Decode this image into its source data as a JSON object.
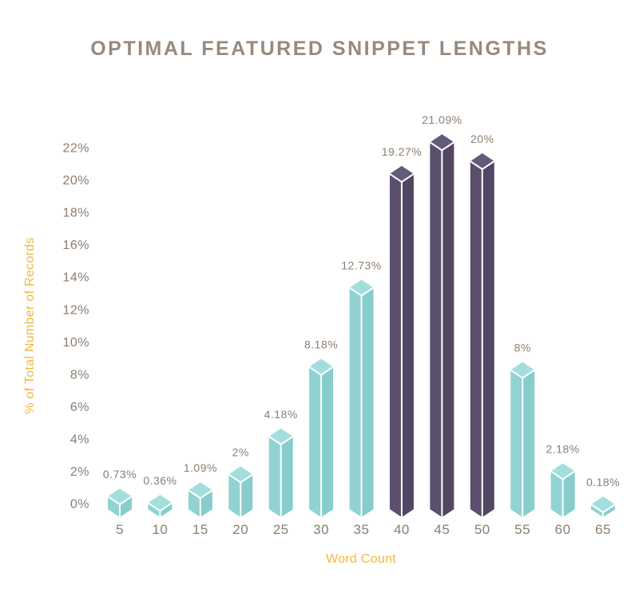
{
  "title": "OPTIMAL FEATURED SNIPPET LENGTHS",
  "colors": {
    "background": "#ffffff",
    "title_text": "#97897d",
    "label_text": "#8b7d70",
    "axis_title_text": "#f5b73e",
    "bar_teal_top": "#a3dedd",
    "bar_teal_left": "#90d3d2",
    "bar_teal_right": "#86cdcc",
    "bar_purple_top": "#645a7a",
    "bar_purple_left": "#5a506e",
    "bar_purple_right": "#514763",
    "edge_white": "#ffffff"
  },
  "chart_data": {
    "type": "bar",
    "bar_style": "3d-isometric",
    "title": "OPTIMAL FEATURED SNIPPET LENGTHS",
    "xlabel": "Word Count",
    "ylabel": "% of Total Number of Records",
    "categories": [
      "5",
      "10",
      "15",
      "20",
      "25",
      "30",
      "35",
      "40",
      "45",
      "50",
      "55",
      "60",
      "65"
    ],
    "values": [
      0.73,
      0.36,
      1.09,
      2,
      4.18,
      8.18,
      12.73,
      19.27,
      21.09,
      20,
      8,
      2.18,
      0.18
    ],
    "value_labels": [
      "0.73%",
      "0.36%",
      "1.09%",
      "2%",
      "4.18%",
      "8.18%",
      "12.73%",
      "19.27%",
      "21.09%",
      "20%",
      "8%",
      "2.18%",
      "0.18%"
    ],
    "highlight_categories": [
      "40",
      "45",
      "50"
    ],
    "y_ticks": [
      "0%",
      "2%",
      "4%",
      "6%",
      "8%",
      "10%",
      "12%",
      "14%",
      "16%",
      "18%",
      "20%",
      "22%"
    ],
    "ylim": [
      0,
      22
    ],
    "y_tick_step": 2,
    "grid": false,
    "legend": "none"
  }
}
